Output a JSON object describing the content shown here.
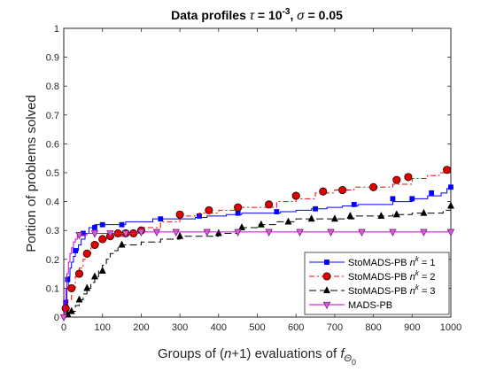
{
  "chart_data": {
    "type": "line",
    "title": "Data profiles τ = 10^-3, σ = 0.05",
    "title_parts": {
      "prefix": "Data profiles ",
      "tau": "τ",
      "eq1": " = 10",
      "exp": "-3",
      "sep": ", ",
      "sigma": "σ",
      "eq2": " = 0.05"
    },
    "xlabel": "Groups of (n+1) evaluations of f_Θ0",
    "xlabel_parts": {
      "a": "Groups of (",
      "n": "n",
      "b": "+1) evaluations of ",
      "f": "f",
      "sub": "Θ",
      "subsub": "0"
    },
    "ylabel": "Portion of problems solved",
    "xlim": [
      0,
      1000
    ],
    "ylim": [
      0,
      1
    ],
    "x_ticks": [
      "0",
      "100",
      "200",
      "300",
      "400",
      "500",
      "600",
      "700",
      "800",
      "900",
      "1000"
    ],
    "y_ticks": [
      "0",
      "0.1",
      "0.2",
      "0.3",
      "0.4",
      "0.5",
      "0.6",
      "0.7",
      "0.8",
      "0.9",
      "1"
    ],
    "legend_position": "bottom-right",
    "series": [
      {
        "name": "StoMADS-PB n^k = 1",
        "legend_parts": {
          "text": "StoMADS-PB ",
          "n": "n",
          "k": "k",
          "eq": " = 1"
        },
        "color": "#0000ff",
        "dash": "",
        "marker": "square",
        "x": [
          0,
          2,
          5,
          8,
          12,
          16,
          20,
          25,
          30,
          38,
          45,
          55,
          65,
          80,
          100,
          130,
          160,
          190,
          230,
          270,
          300,
          340,
          370,
          420,
          460,
          500,
          560,
          600,
          640,
          680,
          720,
          760,
          800,
          850,
          900,
          940,
          975,
          990,
          1000
        ],
        "y": [
          0,
          0.03,
          0.06,
          0.1,
          0.14,
          0.17,
          0.19,
          0.21,
          0.23,
          0.25,
          0.27,
          0.29,
          0.31,
          0.32,
          0.32,
          0.32,
          0.33,
          0.33,
          0.34,
          0.34,
          0.34,
          0.345,
          0.35,
          0.355,
          0.36,
          0.36,
          0.365,
          0.37,
          0.375,
          0.38,
          0.385,
          0.39,
          0.39,
          0.4,
          0.41,
          0.42,
          0.43,
          0.445,
          0.45
        ],
        "marker_x": [
          5,
          10,
          30,
          50,
          80,
          100,
          150,
          250,
          350,
          450,
          550,
          650,
          750,
          850,
          900,
          950,
          1000
        ],
        "marker_y": [
          0.05,
          0.13,
          0.23,
          0.29,
          0.31,
          0.32,
          0.32,
          0.34,
          0.35,
          0.36,
          0.365,
          0.375,
          0.39,
          0.41,
          0.41,
          0.43,
          0.45
        ]
      },
      {
        "name": "StoMADS-PB n^k = 2",
        "legend_parts": {
          "text": "StoMADS-PB ",
          "n": "n",
          "k": "k",
          "eq": " = 2"
        },
        "color": "#ff0000",
        "dash": "6 3 2 3",
        "marker": "circle",
        "x": [
          0,
          5,
          10,
          20,
          30,
          40,
          50,
          60,
          70,
          80,
          90,
          100,
          120,
          140,
          160,
          180,
          200,
          250,
          300,
          350,
          400,
          450,
          500,
          550,
          600,
          650,
          700,
          750,
          800,
          850,
          900,
          940,
          970,
          1000
        ],
        "y": [
          0,
          0.03,
          0.06,
          0.1,
          0.14,
          0.17,
          0.2,
          0.22,
          0.24,
          0.25,
          0.26,
          0.27,
          0.28,
          0.28,
          0.29,
          0.3,
          0.31,
          0.33,
          0.35,
          0.36,
          0.37,
          0.38,
          0.38,
          0.4,
          0.41,
          0.43,
          0.44,
          0.45,
          0.45,
          0.46,
          0.48,
          0.49,
          0.5,
          0.51
        ],
        "marker_x": [
          5,
          20,
          40,
          60,
          80,
          100,
          120,
          140,
          160,
          180,
          200,
          300,
          375,
          450,
          530,
          600,
          670,
          720,
          800,
          860,
          890,
          990
        ],
        "marker_y": [
          0.03,
          0.1,
          0.15,
          0.22,
          0.25,
          0.27,
          0.28,
          0.29,
          0.29,
          0.29,
          0.3,
          0.355,
          0.37,
          0.38,
          0.39,
          0.42,
          0.435,
          0.44,
          0.45,
          0.475,
          0.485,
          0.51
        ]
      },
      {
        "name": "StoMADS-PB n^k = 3",
        "legend_parts": {
          "text": "StoMADS-PB ",
          "n": "n",
          "k": "k",
          "eq": " = 3"
        },
        "color": "#000000",
        "dash": "8 4",
        "marker": "triangle",
        "x": [
          0,
          10,
          20,
          30,
          40,
          50,
          60,
          70,
          80,
          90,
          100,
          110,
          120,
          130,
          140,
          150,
          160,
          200,
          250,
          300,
          350,
          400,
          450,
          500,
          550,
          600,
          650,
          700,
          750,
          800,
          850,
          900,
          950,
          980,
          1000
        ],
        "y": [
          0,
          0.01,
          0.02,
          0.04,
          0.06,
          0.08,
          0.1,
          0.12,
          0.14,
          0.16,
          0.18,
          0.2,
          0.22,
          0.23,
          0.24,
          0.25,
          0.25,
          0.26,
          0.27,
          0.28,
          0.28,
          0.29,
          0.31,
          0.32,
          0.33,
          0.34,
          0.34,
          0.34,
          0.35,
          0.35,
          0.355,
          0.36,
          0.36,
          0.37,
          0.385
        ],
        "marker_x": [
          10,
          20,
          40,
          60,
          80,
          100,
          150,
          300,
          400,
          460,
          510,
          580,
          640,
          700,
          740,
          820,
          860,
          930,
          1000
        ],
        "marker_y": [
          0.01,
          0.02,
          0.06,
          0.1,
          0.14,
          0.16,
          0.25,
          0.28,
          0.29,
          0.31,
          0.32,
          0.33,
          0.34,
          0.34,
          0.35,
          0.35,
          0.355,
          0.36,
          0.385
        ]
      },
      {
        "name": "MADS-PB",
        "legend_parts": {
          "text": "MADS-PB",
          "n": "",
          "k": "",
          "eq": ""
        },
        "color": "#cc00cc",
        "dash": "",
        "marker": "triangle-down",
        "x": [
          0,
          2,
          5,
          8,
          12,
          16,
          20,
          25,
          30,
          35,
          40,
          60,
          100,
          150,
          200,
          250,
          300,
          400,
          500,
          600,
          700,
          800,
          900,
          1000
        ],
        "y": [
          0,
          0.05,
          0.1,
          0.15,
          0.19,
          0.22,
          0.24,
          0.26,
          0.27,
          0.28,
          0.285,
          0.29,
          0.29,
          0.29,
          0.295,
          0.295,
          0.295,
          0.295,
          0.295,
          0.295,
          0.295,
          0.295,
          0.295,
          0.295
        ],
        "marker_x": [
          0,
          40,
          80,
          120,
          160,
          200,
          240,
          290,
          370,
          450,
          530,
          610,
          690,
          770,
          850,
          930,
          1000
        ],
        "marker_y": [
          0.0,
          0.285,
          0.29,
          0.29,
          0.29,
          0.295,
          0.295,
          0.295,
          0.295,
          0.295,
          0.295,
          0.295,
          0.295,
          0.295,
          0.295,
          0.295,
          0.295
        ]
      }
    ]
  }
}
